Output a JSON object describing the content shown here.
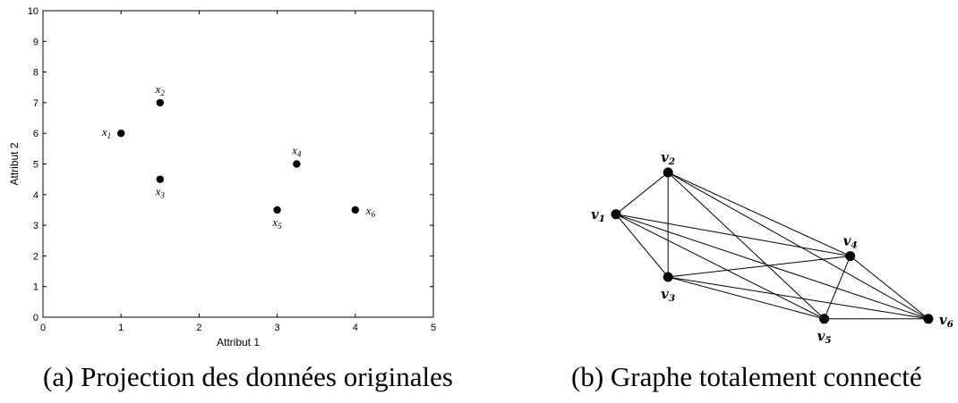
{
  "chart_data": [
    {
      "type": "scatter",
      "xlabel": "Attribut 1",
      "ylabel": "Attribut 2",
      "xlim": [
        0,
        5
      ],
      "ylim": [
        0,
        10
      ],
      "xticks": [
        "0",
        "1",
        "2",
        "3",
        "4",
        "5"
      ],
      "yticks": [
        "0",
        "1",
        "2",
        "3",
        "4",
        "5",
        "6",
        "7",
        "8",
        "9",
        "10"
      ],
      "points": [
        {
          "label": "x1",
          "x": 1.0,
          "y": 6.0,
          "label_pos": "left"
        },
        {
          "label": "x2",
          "x": 1.5,
          "y": 7.0,
          "label_pos": "above"
        },
        {
          "label": "x3",
          "x": 1.5,
          "y": 4.5,
          "label_pos": "below"
        },
        {
          "label": "x4",
          "x": 3.25,
          "y": 5.0,
          "label_pos": "above"
        },
        {
          "label": "x5",
          "x": 3.0,
          "y": 3.5,
          "label_pos": "below"
        },
        {
          "label": "x6",
          "x": 4.0,
          "y": 3.5,
          "label_pos": "right"
        }
      ],
      "caption": "(a) Projection des données originales"
    },
    {
      "type": "graph",
      "nodes": [
        {
          "id": "v1",
          "label": "v1",
          "x": 1.0,
          "y": 6.0,
          "label_pos": "left"
        },
        {
          "id": "v2",
          "label": "v2",
          "x": 1.5,
          "y": 7.0,
          "label_pos": "above"
        },
        {
          "id": "v3",
          "label": "v3",
          "x": 1.5,
          "y": 4.5,
          "label_pos": "below"
        },
        {
          "id": "v4",
          "label": "v4",
          "x": 3.25,
          "y": 5.0,
          "label_pos": "above"
        },
        {
          "id": "v5",
          "label": "v5",
          "x": 3.0,
          "y": 3.5,
          "label_pos": "below"
        },
        {
          "id": "v6",
          "label": "v6",
          "x": 4.0,
          "y": 3.5,
          "label_pos": "right"
        }
      ],
      "edges": "complete",
      "caption": "(b) Graphe totalement connecté"
    }
  ]
}
